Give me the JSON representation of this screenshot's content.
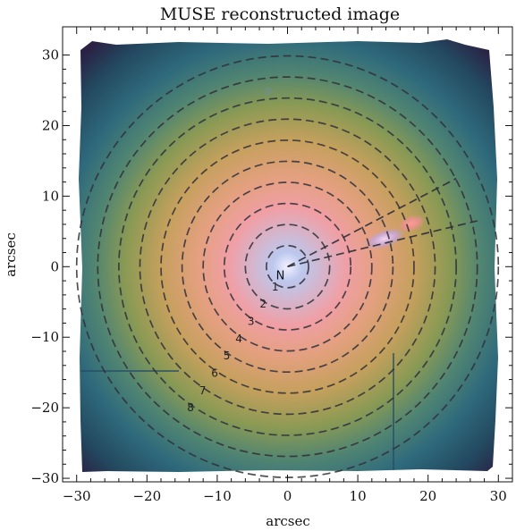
{
  "chart_data": {
    "type": "image",
    "title": "MUSE reconstructed image",
    "xlabel": "arcsec",
    "ylabel": "arcsec",
    "xlim": [
      -32,
      32
    ],
    "ylim": [
      -30.5,
      34
    ],
    "xticks": [
      -30,
      -20,
      -10,
      0,
      10,
      20,
      30
    ],
    "yticks": [
      -30,
      -20,
      -10,
      0,
      10,
      20,
      30
    ],
    "xtick_labels": [
      "−30",
      "−20",
      "−10",
      "0",
      "10",
      "20",
      "30"
    ],
    "ytick_labels": [
      "−30",
      "−20",
      "−10",
      "0",
      "10",
      "20",
      "30"
    ],
    "nucleus": {
      "label": "N",
      "x": 0,
      "y": 0
    },
    "rings": [
      {
        "label": "1",
        "radius": 3.0
      },
      {
        "label": "2",
        "radius": 6.0
      },
      {
        "label": "3",
        "radius": 9.0
      },
      {
        "label": "4",
        "radius": 12.0
      },
      {
        "label": "5",
        "radius": 15.0
      },
      {
        "label": "6",
        "radius": 18.0
      },
      {
        "label": "7",
        "radius": 21.0
      },
      {
        "label": "8",
        "radius": 24.0
      },
      {
        "label": "",
        "radius": 27.0
      },
      {
        "label": "",
        "radius": 30.0
      }
    ],
    "wedge": {
      "from": [
        0,
        0
      ],
      "to_upper": [
        24,
        12.5
      ],
      "to_lower": [
        27,
        6.5
      ]
    },
    "colormap_stops": [
      "#f4f1ff",
      "#bcc8ee",
      "#f09fa5",
      "#e3a07e",
      "#c5a05d",
      "#8a9a54",
      "#4f8472",
      "#2f6a7c",
      "#23485f",
      "#2a2144"
    ]
  }
}
